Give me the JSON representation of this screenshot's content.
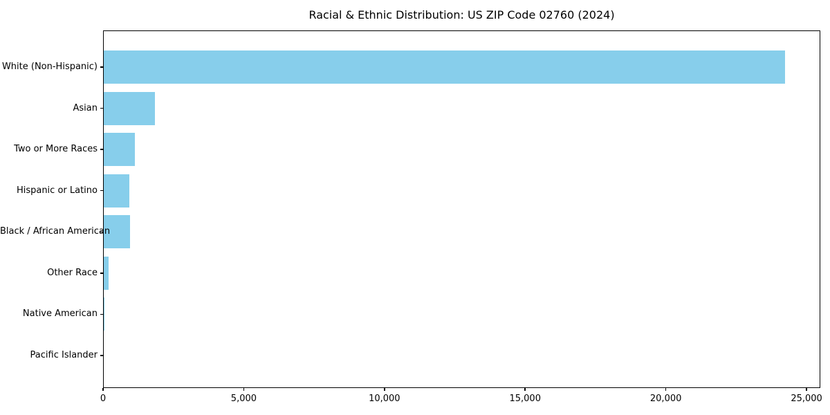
{
  "chart_data": {
    "type": "bar",
    "orientation": "horizontal",
    "title": "Racial & Ethnic Distribution: US ZIP Code 02760 (2024)",
    "categories": [
      "White (Non-Hispanic)",
      "Asian",
      "Two or More Races",
      "Hispanic or Latino",
      "Black / African American",
      "Other Race",
      "Native American",
      "Pacific Islander"
    ],
    "values": [
      24200,
      1810,
      1110,
      910,
      930,
      165,
      20,
      5
    ],
    "xlabel": "",
    "ylabel": "",
    "xlim": [
      0,
      25490
    ],
    "xticks": [
      0,
      5000,
      10000,
      15000,
      20000,
      25000
    ],
    "xtick_labels": [
      "0",
      "5,000",
      "10,000",
      "15,000",
      "20,000",
      "25,000"
    ],
    "bar_color": "#87CEEB",
    "axis_color": "#000000",
    "text_color": "#000000",
    "grid": false,
    "legend": null
  }
}
